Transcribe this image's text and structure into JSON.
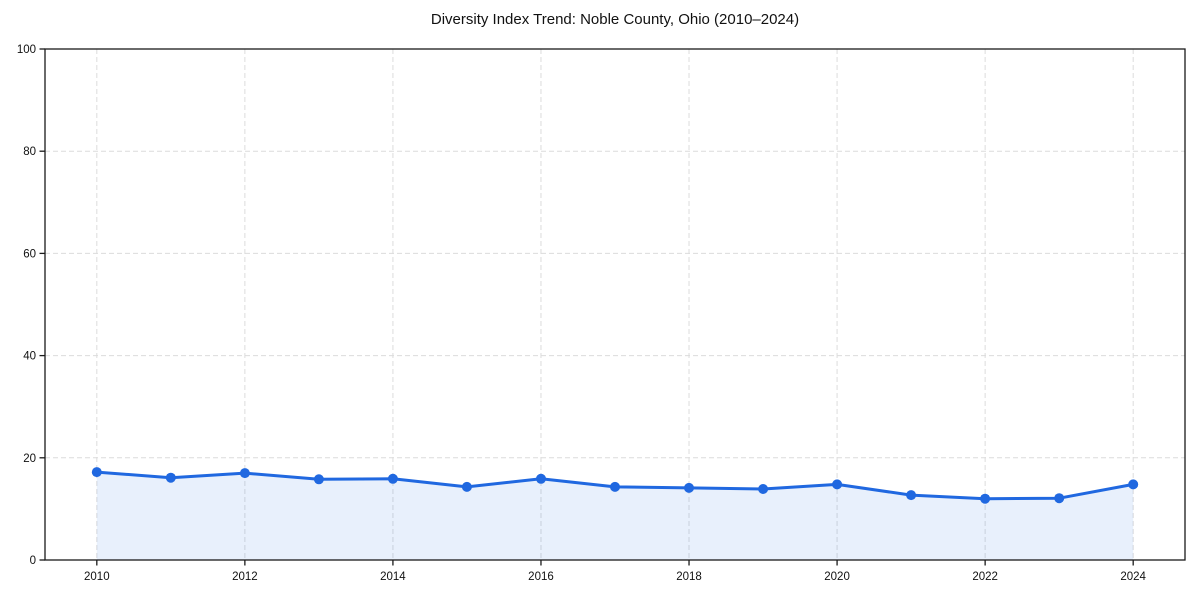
{
  "figure": {
    "title": "Diversity Index Trend: Noble County, Ohio (2010–2024)"
  },
  "chart_data": {
    "type": "area",
    "title": "Diversity Index Trend: Noble County, Ohio (2010–2024)",
    "x": [
      2010,
      2011,
      2012,
      2013,
      2014,
      2015,
      2016,
      2017,
      2018,
      2019,
      2020,
      2021,
      2022,
      2023,
      2024
    ],
    "series": [
      {
        "name": "Diversity Index",
        "values": [
          17.2,
          16.1,
          17.0,
          15.8,
          15.9,
          14.3,
          15.9,
          14.3,
          14.1,
          13.9,
          14.8,
          12.7,
          12.0,
          12.1,
          14.8
        ]
      }
    ],
    "xlabel": "",
    "ylabel": "",
    "xlim": [
      2009.3,
      2024.7
    ],
    "ylim": [
      0,
      100
    ],
    "x_ticks": [
      2010,
      2012,
      2014,
      2016,
      2018,
      2020,
      2022,
      2024
    ],
    "y_ticks": [
      0,
      20,
      40,
      60,
      80,
      100
    ],
    "grid": true,
    "grid_style": "dashed",
    "legend": "none",
    "colors": {
      "line": "#2068e0",
      "marker": "#2068e0",
      "fill": "rgba(32,104,224,0.10)",
      "grid": "#dcdcdc",
      "spine": "#1a1a1a",
      "tick_text": "#111111"
    }
  }
}
